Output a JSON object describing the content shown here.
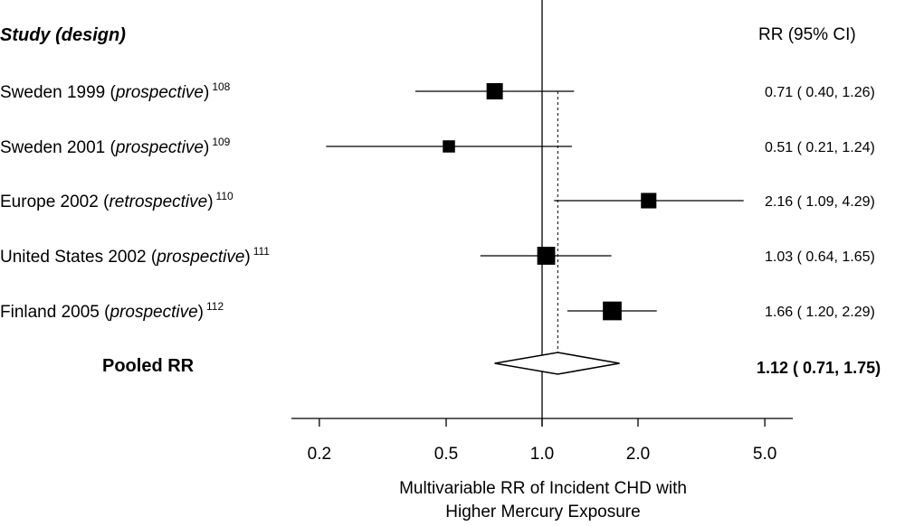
{
  "chart_data": {
    "type": "forest",
    "header": {
      "study_label": "Study  (design)",
      "rr_label": "RR  (95% CI)"
    },
    "studies": [
      {
        "name": "Sweden 1999",
        "design": "prospective",
        "ref": "108",
        "rr": 0.71,
        "lo": 0.4,
        "hi": 1.26,
        "ci_text": "0.71 ( 0.40, 1.26)",
        "weight": 1.0
      },
      {
        "name": "Sweden 2001",
        "design": "prospective",
        "ref": "109",
        "rr": 0.51,
        "lo": 0.21,
        "hi": 1.24,
        "ci_text": "0.51 ( 0.21, 1.24)",
        "weight": 0.75
      },
      {
        "name": "Europe 2002",
        "design": "retrospective",
        "ref": "110",
        "rr": 2.16,
        "lo": 1.09,
        "hi": 4.29,
        "ci_text": "2.16 ( 1.09, 4.29)",
        "weight": 0.95
      },
      {
        "name": "United States 2002",
        "design": "prospective",
        "ref": "111",
        "rr": 1.03,
        "lo": 0.64,
        "hi": 1.65,
        "ci_text": "1.03 ( 0.64, 1.65)",
        "weight": 1.1
      },
      {
        "name": "Finland 2005",
        "design": "prospective",
        "ref": "112",
        "rr": 1.66,
        "lo": 1.2,
        "hi": 2.29,
        "ci_text": "1.66 ( 1.20, 2.29)",
        "weight": 1.15
      }
    ],
    "pooled": {
      "label": "Pooled RR",
      "rr": 1.12,
      "lo": 0.71,
      "hi": 1.75,
      "ci_text": "1.12 ( 0.71, 1.75)"
    },
    "x_scale": "log",
    "x_ticks": [
      0.2,
      0.5,
      1.0,
      2.0,
      5.0
    ],
    "x_tick_labels": [
      "0.2",
      "0.5",
      "1.0",
      "2.0",
      "5.0"
    ],
    "xlim": [
      0.16,
      6.5
    ],
    "reference_line": 1.0,
    "xlabel_lines": [
      "Multivariable RR of Incident CHD with",
      "Higher Mercury Exposure"
    ]
  }
}
